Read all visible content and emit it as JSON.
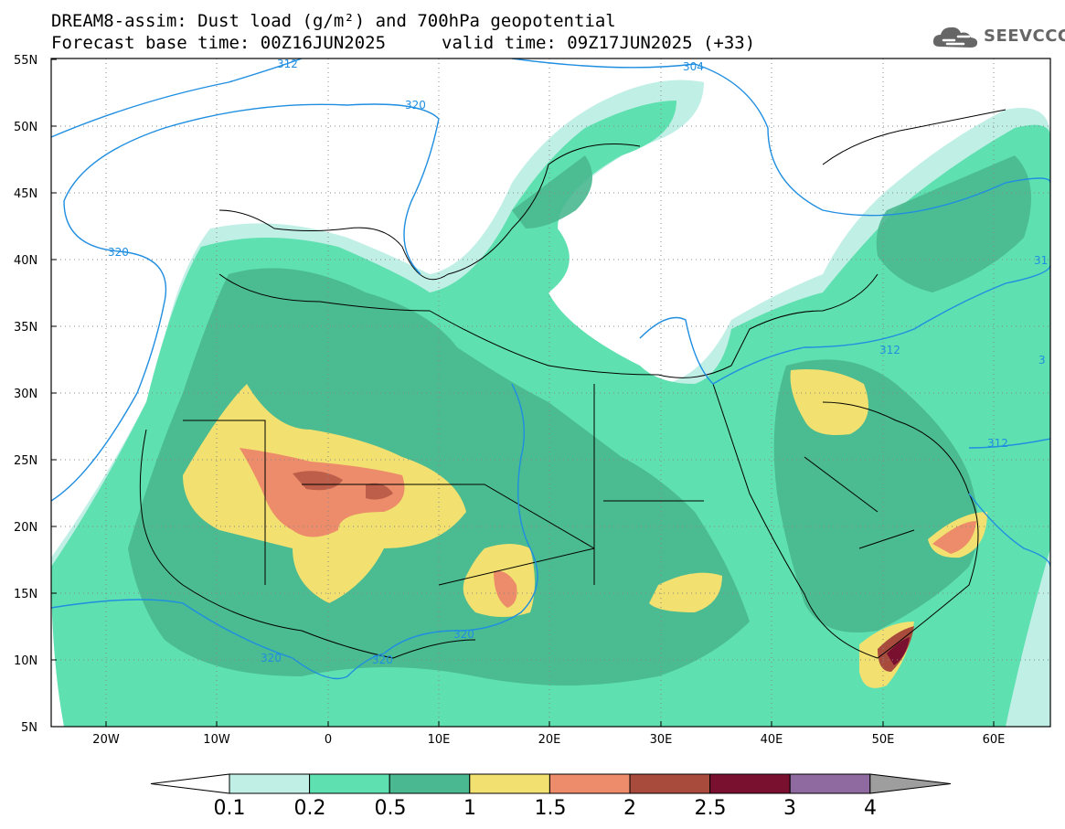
{
  "header": {
    "title_line1": "DREAM8-assim: Dust load (g/m²) and 700hPa geopotential",
    "title_line2a": "Forecast base time: 00Z16JUN2025",
    "title_line2b": "valid time: 09Z17JUN2025 (+33)"
  },
  "logo": {
    "text": "SEEVCCC"
  },
  "axes": {
    "lat_labels": [
      "55N",
      "50N",
      "45N",
      "40N",
      "35N",
      "30N",
      "25N",
      "20N",
      "15N",
      "10N",
      "5N"
    ],
    "lon_labels": [
      "20W",
      "10W",
      "0",
      "10E",
      "20E",
      "30E",
      "40E",
      "50E",
      "60E"
    ]
  },
  "contour_labels": [
    "312",
    "304",
    "320",
    "320",
    "312",
    "312",
    "320",
    "320",
    "320",
    "31",
    "3"
  ],
  "colorbar": {
    "labels": [
      "0.1",
      "0.2",
      "0.5",
      "1",
      "1.5",
      "2",
      "2.5",
      "3",
      "4"
    ],
    "colors": [
      "#c0efe6",
      "#5fe0b0",
      "#4ab890",
      "#f2e070",
      "#ec8c6a",
      "#a84a3c",
      "#7a1030",
      "#8e6aa0"
    ],
    "over_color": "#9e9e9e",
    "under_color": "#ffffff"
  }
}
